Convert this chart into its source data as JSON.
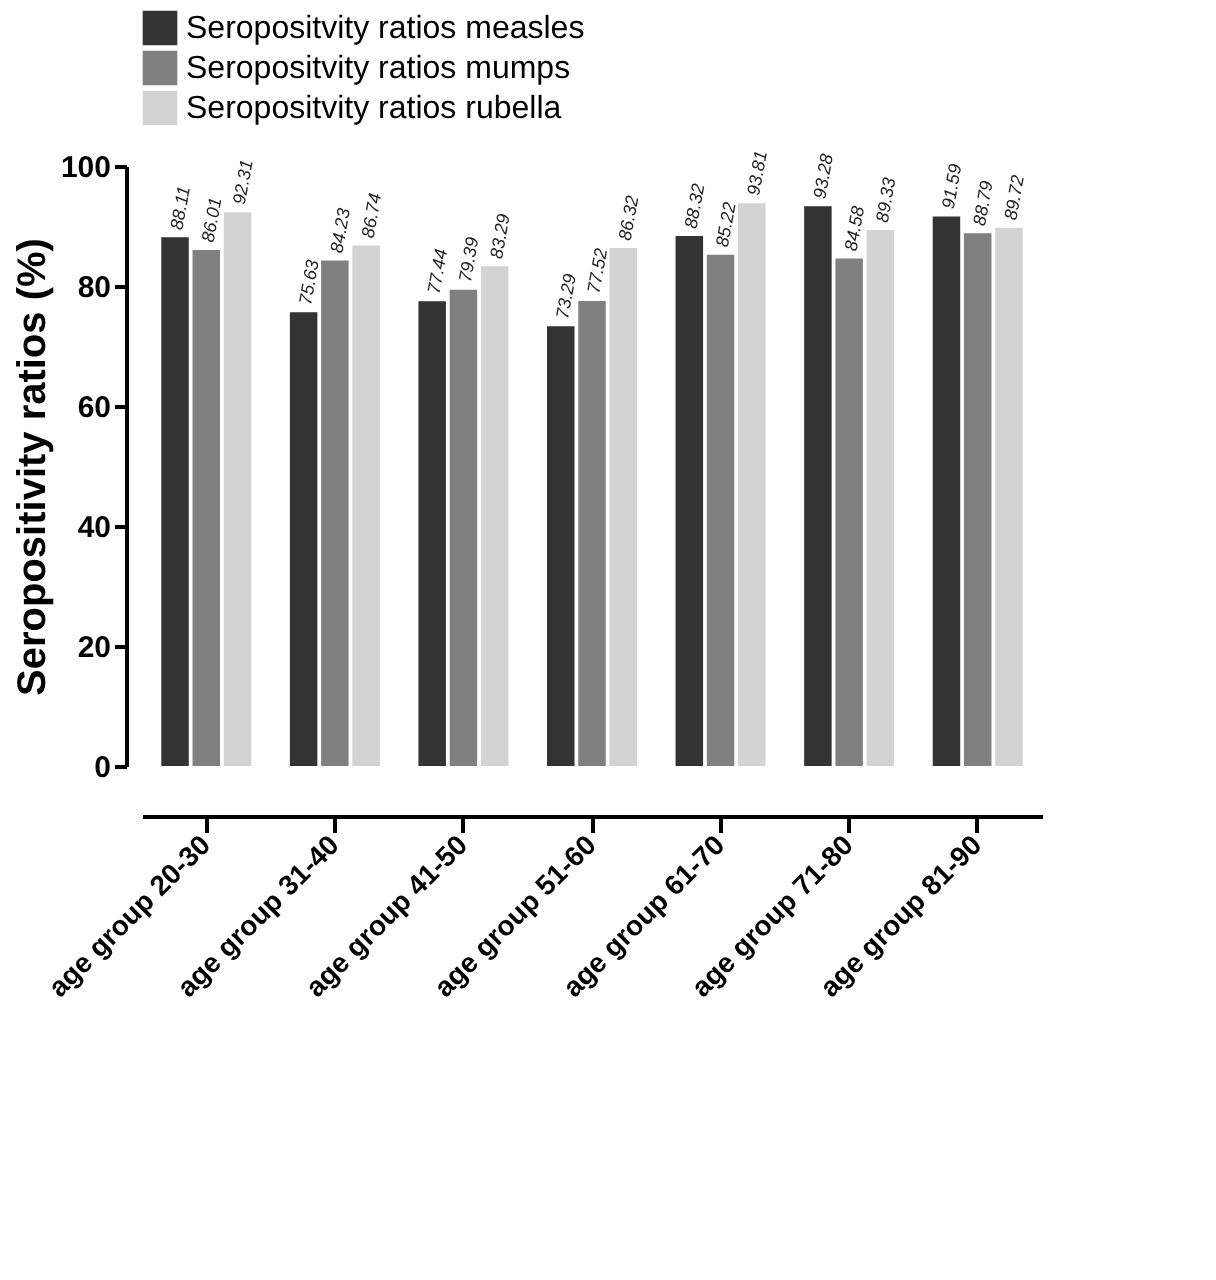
{
  "chart_data": {
    "type": "bar",
    "ylabel": "Seropositivity ratios (%)",
    "categories": [
      "age group 20-30",
      "age group 31-40",
      "age group 41-50",
      "age group 51-60",
      "age group 61-70",
      "age group 71-80",
      "age group 81-90"
    ],
    "series": [
      {
        "name": "Seropositvity ratios   measles",
        "color": "#333333",
        "values": [
          88.11,
          75.63,
          77.44,
          73.29,
          88.32,
          93.28,
          91.59
        ]
      },
      {
        "name": "Seropositvity ratios   mumps",
        "color": "#808080",
        "values": [
          86.01,
          84.23,
          79.39,
          77.52,
          85.22,
          84.58,
          88.79
        ]
      },
      {
        "name": "Seropositvity ratios   rubella",
        "color": "#d3d3d3",
        "values": [
          92.31,
          86.74,
          83.29,
          86.32,
          93.81,
          89.33,
          89.72
        ]
      }
    ],
    "ylim": [
      0,
      100
    ],
    "yticks": [
      0,
      20,
      40,
      60,
      80,
      100
    ],
    "grid": false,
    "legend": "top",
    "data_labels": true
  }
}
